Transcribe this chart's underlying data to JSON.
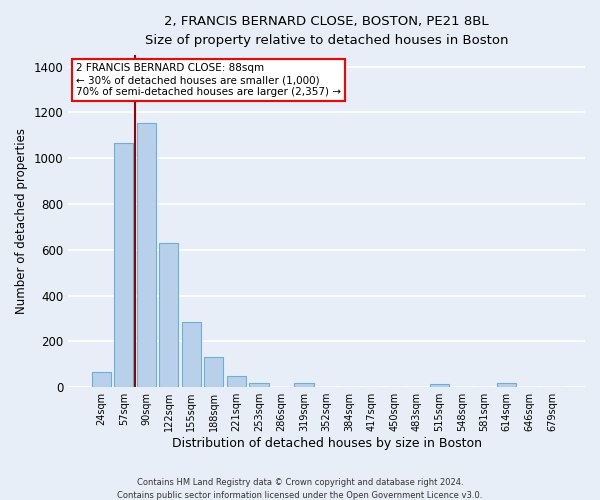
{
  "title": "2, FRANCIS BERNARD CLOSE, BOSTON, PE21 8BL",
  "subtitle": "Size of property relative to detached houses in Boston",
  "xlabel": "Distribution of detached houses by size in Boston",
  "ylabel": "Number of detached properties",
  "footer_line1": "Contains HM Land Registry data © Crown copyright and database right 2024.",
  "footer_line2": "Contains public sector information licensed under the Open Government Licence v3.0.",
  "bar_labels": [
    "24sqm",
    "57sqm",
    "90sqm",
    "122sqm",
    "155sqm",
    "188sqm",
    "221sqm",
    "253sqm",
    "286sqm",
    "319sqm",
    "352sqm",
    "384sqm",
    "417sqm",
    "450sqm",
    "483sqm",
    "515sqm",
    "548sqm",
    "581sqm",
    "614sqm",
    "646sqm",
    "679sqm"
  ],
  "bar_values": [
    65,
    1065,
    1155,
    630,
    285,
    130,
    48,
    20,
    0,
    20,
    0,
    0,
    0,
    0,
    0,
    15,
    0,
    0,
    20,
    0,
    0
  ],
  "bar_color": "#b8d0ea",
  "bar_edge_color": "#6baed6",
  "ylim": [
    0,
    1450
  ],
  "yticks": [
    0,
    200,
    400,
    600,
    800,
    1000,
    1200,
    1400
  ],
  "property_line_color": "#990000",
  "annotation_text_line1": "2 FRANCIS BERNARD CLOSE: 88sqm",
  "annotation_text_line2": "← 30% of detached houses are smaller (1,000)",
  "annotation_text_line3": "70% of semi-detached houses are larger (2,357) →",
  "bg_color": "#e8eef7",
  "grid_color": "#ffffff"
}
